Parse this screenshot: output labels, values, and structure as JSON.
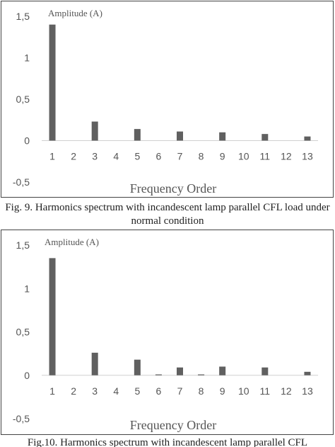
{
  "chart_data": [
    {
      "type": "bar",
      "categories": [
        "1",
        "2",
        "3",
        "4",
        "5",
        "6",
        "7",
        "8",
        "9",
        "10",
        "11",
        "12",
        "13"
      ],
      "values": [
        1.4,
        0,
        0.23,
        0,
        0.14,
        0,
        0.11,
        0,
        0.1,
        0,
        0.08,
        0,
        0.05
      ],
      "ylabel": "Amplitude (A)",
      "xlabel": "Frequency Order",
      "yticks": [
        "1,5",
        "1",
        "0,5",
        "0",
        "-0,5"
      ],
      "ylim": [
        -0.5,
        1.5
      ],
      "grid": false,
      "bar_color": "#606060"
    },
    {
      "type": "bar",
      "categories": [
        "1",
        "2",
        "3",
        "4",
        "5",
        "6",
        "7",
        "8",
        "9",
        "10",
        "11",
        "12",
        "13"
      ],
      "values": [
        1.35,
        0,
        0.26,
        0,
        0.18,
        0.01,
        0.09,
        0.01,
        0.1,
        0,
        0.09,
        0,
        0.04
      ],
      "ylabel": "Amplitude (A)",
      "xlabel": "Frequency Order",
      "yticks": [
        "1,5",
        "1",
        "0,5",
        "0",
        "-0,5"
      ],
      "ylim": [
        -0.5,
        1.5
      ],
      "grid": false,
      "bar_color": "#606060"
    }
  ],
  "captions": [
    "Fig. 9. Harmonics spectrum with incandescent lamp parallel CFL load under normal condition",
    "Fig.10. Harmonics spectrum with incandescent lamp parallel CFL"
  ]
}
